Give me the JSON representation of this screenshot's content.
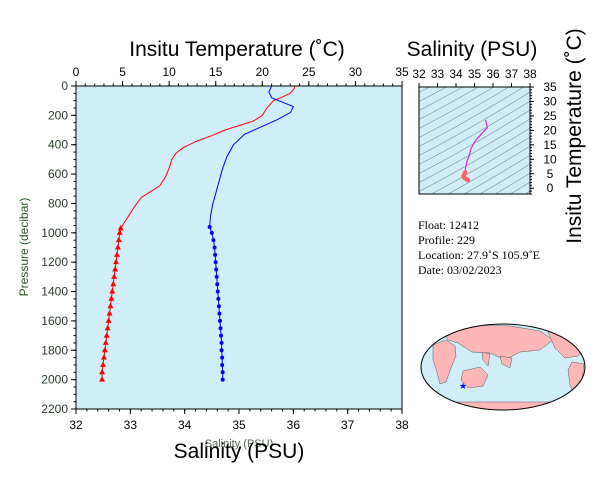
{
  "chart_data": [
    {
      "type": "line",
      "name": "profile",
      "top_axis_title": "Insitu Temperature (˚C)",
      "bottom_axis_title": "Salinity (PSU)",
      "bottom_axis_title_small": "Salinity (PSU)",
      "ylabel": "Pressure (decibar)",
      "temperature_axis": {
        "range": [
          0,
          35
        ],
        "ticks": [
          0,
          5,
          10,
          15,
          20,
          25,
          30,
          35
        ]
      },
      "salinity_axis": {
        "range": [
          32,
          38
        ],
        "ticks": [
          32,
          33,
          34,
          35,
          36,
          37,
          38
        ]
      },
      "pressure_axis": {
        "range": [
          0,
          2200
        ],
        "ticks": [
          0,
          200,
          400,
          600,
          800,
          1000,
          1200,
          1400,
          1600,
          1800,
          2000,
          2200
        ],
        "inverted": true
      },
      "background_color": "#d0eef8",
      "series": [
        {
          "color": "#ff0000",
          "x_axis": "temperature",
          "points": [
            [
              23.5,
              0
            ],
            [
              23.4,
              20
            ],
            [
              23.0,
              50
            ],
            [
              22.0,
              80
            ],
            [
              21.2,
              100
            ],
            [
              20.5,
              150
            ],
            [
              20.0,
              200
            ],
            [
              19.0,
              240
            ],
            [
              17.5,
              270
            ],
            [
              16.0,
              300
            ],
            [
              14.5,
              340
            ],
            [
              12.8,
              380
            ],
            [
              11.5,
              420
            ],
            [
              10.7,
              460
            ],
            [
              10.3,
              500
            ],
            [
              10.0,
              560
            ],
            [
              9.6,
              620
            ],
            [
              9.0,
              680
            ],
            [
              8.0,
              720
            ],
            [
              7.0,
              760
            ],
            [
              6.3,
              820
            ],
            [
              5.7,
              880
            ],
            [
              5.2,
              930
            ],
            [
              4.8,
              970
            ]
          ]
        },
        {
          "color": "#ff0000",
          "x_axis": "temperature",
          "marker": "triangle",
          "points": [
            [
              4.8,
              970
            ],
            [
              4.7,
              1000
            ],
            [
              4.6,
              1050
            ],
            [
              4.5,
              1100
            ],
            [
              4.4,
              1150
            ],
            [
              4.3,
              1200
            ],
            [
              4.2,
              1250
            ],
            [
              4.1,
              1300
            ],
            [
              4.0,
              1350
            ],
            [
              3.9,
              1400
            ],
            [
              3.8,
              1450
            ],
            [
              3.7,
              1500
            ],
            [
              3.6,
              1550
            ],
            [
              3.5,
              1600
            ],
            [
              3.4,
              1650
            ],
            [
              3.3,
              1700
            ],
            [
              3.2,
              1750
            ],
            [
              3.1,
              1800
            ],
            [
              3.0,
              1850
            ],
            [
              2.9,
              1900
            ],
            [
              2.8,
              1950
            ],
            [
              2.8,
              2000
            ]
          ]
        },
        {
          "color": "#0000ff",
          "x_axis": "salinity",
          "points": [
            [
              35.6,
              0
            ],
            [
              35.55,
              40
            ],
            [
              35.6,
              80
            ],
            [
              35.8,
              110
            ],
            [
              36.0,
              140
            ],
            [
              35.95,
              180
            ],
            [
              35.7,
              230
            ],
            [
              35.4,
              280
            ],
            [
              35.1,
              330
            ],
            [
              34.9,
              400
            ],
            [
              34.78,
              480
            ],
            [
              34.7,
              560
            ],
            [
              34.64,
              640
            ],
            [
              34.58,
              720
            ],
            [
              34.52,
              800
            ],
            [
              34.48,
              880
            ],
            [
              34.46,
              950
            ]
          ]
        },
        {
          "color": "#0000ff",
          "x_axis": "salinity",
          "marker": "dot",
          "points": [
            [
              34.46,
              960
            ],
            [
              34.5,
              1000
            ],
            [
              34.53,
              1050
            ],
            [
              34.55,
              1100
            ],
            [
              34.56,
              1150
            ],
            [
              34.57,
              1200
            ],
            [
              34.58,
              1250
            ],
            [
              34.59,
              1300
            ],
            [
              34.6,
              1350
            ],
            [
              34.61,
              1400
            ],
            [
              34.62,
              1450
            ],
            [
              34.63,
              1500
            ],
            [
              34.64,
              1550
            ],
            [
              34.65,
              1600
            ],
            [
              34.66,
              1650
            ],
            [
              34.67,
              1700
            ],
            [
              34.68,
              1750
            ],
            [
              34.68,
              1800
            ],
            [
              34.69,
              1850
            ],
            [
              34.69,
              1900
            ],
            [
              34.7,
              1950
            ],
            [
              34.7,
              2000
            ]
          ]
        }
      ]
    },
    {
      "type": "scatter",
      "name": "ts-diagram",
      "top_axis_title": "Salinity (PSU)",
      "right_axis_title": "Insitu Temperature (˚C)",
      "salinity_axis": {
        "range": [
          32,
          38
        ],
        "ticks": [
          32,
          33,
          34,
          35,
          36,
          37,
          38
        ]
      },
      "temperature_axis": {
        "range": [
          -2,
          35
        ],
        "ticks": [
          0,
          5,
          10,
          15,
          20,
          25,
          30,
          35
        ]
      },
      "background_color": "#d0eef8",
      "series": [
        {
          "color": "#dd22dd",
          "points": [
            [
              35.6,
              23.5
            ],
            [
              35.7,
              21
            ],
            [
              35.4,
              19
            ],
            [
              35.0,
              16
            ],
            [
              34.8,
              13.5
            ],
            [
              34.7,
              11
            ],
            [
              34.6,
              9.5
            ],
            [
              34.55,
              8
            ],
            [
              34.5,
              6.5
            ]
          ]
        },
        {
          "color": "#ff6060",
          "points": [
            [
              34.5,
              5.5
            ],
            [
              34.45,
              4.8
            ],
            [
              34.4,
              4.2
            ],
            [
              34.45,
              3.6
            ],
            [
              34.55,
              3.2
            ],
            [
              34.6,
              2.9
            ],
            [
              34.65,
              2.8
            ]
          ]
        }
      ]
    }
  ],
  "float_info": {
    "float_line": "Float:  12412",
    "profile_line": "Profile:  229",
    "location_line": "Location:  27.9˚S  105.9˚E",
    "date_line": "Date:  03/02/2023"
  },
  "map": {
    "ocean_color": "#d0eef8",
    "land_color": "#ffb6b6",
    "marker_color": "#0000ff"
  }
}
